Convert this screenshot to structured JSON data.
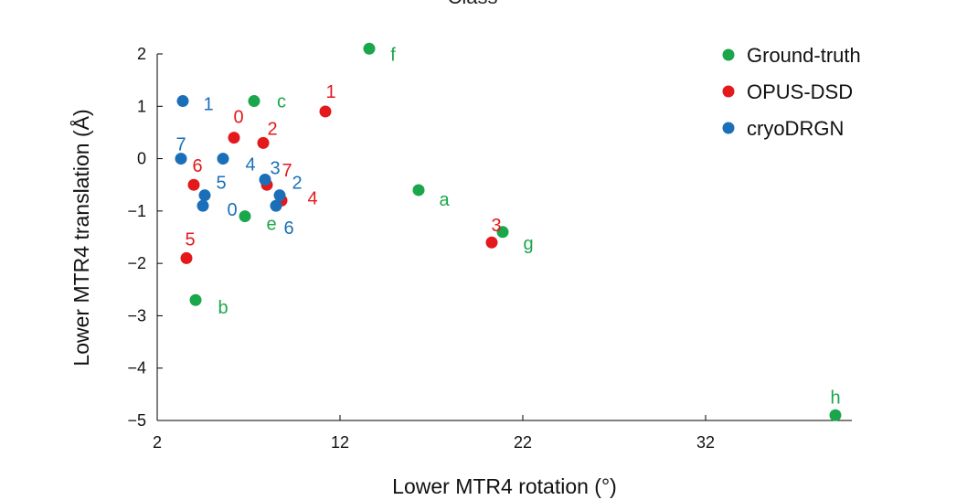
{
  "chart_data": {
    "type": "scatter",
    "title": "Class",
    "xlabel": "Lower MTR4 rotation (°)",
    "ylabel": "Lower MTR4 translation (Å)",
    "xlim": [
      2,
      40
    ],
    "ylim": [
      -5,
      2
    ],
    "xticks": [
      2,
      12,
      22,
      32
    ],
    "xtick_labels": [
      "2",
      "12",
      "22",
      "32"
    ],
    "yticks": [
      2,
      1,
      0,
      -1,
      -2,
      -3,
      -4,
      -5
    ],
    "ytick_labels": [
      "2",
      "1",
      "0",
      "−1",
      "−2",
      "−3",
      "−4",
      "−5"
    ],
    "legend_position": "top-right",
    "series": [
      {
        "name": "Ground-truth",
        "color": "#1aa64a",
        "points": [
          {
            "label": "f",
            "x": 13.6,
            "y": 2.1
          },
          {
            "label": "c",
            "x": 7.3,
            "y": 1.1
          },
          {
            "label": "a",
            "x": 16.3,
            "y": -0.6
          },
          {
            "label": "e",
            "x": 6.8,
            "y": -1.1
          },
          {
            "label": "g",
            "x": 20.9,
            "y": -1.4
          },
          {
            "label": "b",
            "x": 4.1,
            "y": -2.7
          },
          {
            "label": "h",
            "x": 39.1,
            "y": -4.9
          }
        ]
      },
      {
        "name": "OPUS-DSD",
        "color": "#e3191c",
        "points": [
          {
            "label": "1",
            "x": 11.2,
            "y": 0.9
          },
          {
            "label": "0",
            "x": 6.2,
            "y": 0.4
          },
          {
            "label": "2",
            "x": 7.8,
            "y": 0.3
          },
          {
            "label": "6",
            "x": 4.0,
            "y": -0.5
          },
          {
            "label": "7",
            "x": 8.0,
            "y": -0.5
          },
          {
            "label": "4",
            "x": 8.8,
            "y": -0.8
          },
          {
            "label": "5",
            "x": 3.6,
            "y": -1.9
          },
          {
            "label": "3",
            "x": 20.3,
            "y": -1.6
          }
        ]
      },
      {
        "name": "cryoDRGN",
        "color": "#1a6fb8",
        "points": [
          {
            "label": "1",
            "x": 3.4,
            "y": 1.1
          },
          {
            "label": "7",
            "x": 3.3,
            "y": 0.0
          },
          {
            "label": "4",
            "x": 5.6,
            "y": 0.0
          },
          {
            "label": "3",
            "x": 7.9,
            "y": -0.4
          },
          {
            "label": "5",
            "x": 4.6,
            "y": -0.7
          },
          {
            "label": "0",
            "x": 4.5,
            "y": -0.9
          },
          {
            "label": "2",
            "x": 8.7,
            "y": -0.7
          },
          {
            "label": "6",
            "x": 8.5,
            "y": -0.9
          }
        ]
      }
    ]
  }
}
